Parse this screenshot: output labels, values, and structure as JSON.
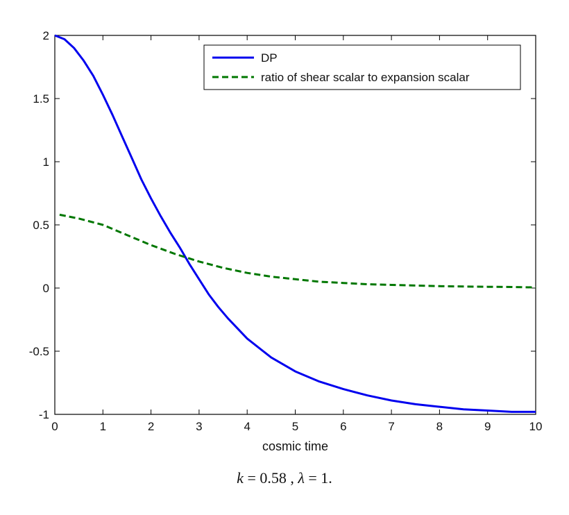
{
  "chart_data": {
    "type": "line",
    "xlabel": "cosmic time",
    "ylabel": "",
    "xlim": [
      0,
      10
    ],
    "ylim": [
      -1,
      2
    ],
    "xticks": [
      "0",
      "1",
      "2",
      "3",
      "4",
      "5",
      "6",
      "7",
      "8",
      "9",
      "10"
    ],
    "yticks": [
      "-1",
      "-0.5",
      "0",
      "0.5",
      "1",
      "1.5",
      "2"
    ],
    "legend_placement": "top-right",
    "series": [
      {
        "name": "DP",
        "color": "#0000ee",
        "style": "solid",
        "x": [
          0,
          0.2,
          0.4,
          0.6,
          0.8,
          1.0,
          1.2,
          1.4,
          1.6,
          1.8,
          2.0,
          2.2,
          2.4,
          2.6,
          2.8,
          3.0,
          3.2,
          3.4,
          3.6,
          3.8,
          4.0,
          4.5,
          5.0,
          5.5,
          6.0,
          6.5,
          7.0,
          7.5,
          8.0,
          8.5,
          9.0,
          9.5,
          10.0
        ],
        "y": [
          2.0,
          1.97,
          1.9,
          1.8,
          1.68,
          1.53,
          1.37,
          1.2,
          1.03,
          0.86,
          0.71,
          0.57,
          0.44,
          0.32,
          0.19,
          0.07,
          -0.05,
          -0.15,
          -0.24,
          -0.32,
          -0.4,
          -0.55,
          -0.66,
          -0.74,
          -0.8,
          -0.85,
          -0.89,
          -0.92,
          -0.94,
          -0.96,
          -0.97,
          -0.98,
          -0.98
        ]
      },
      {
        "name": "ratio of shear scalar to expansion scalar",
        "color": "#007700",
        "style": "dashed",
        "x": [
          0.1,
          0.5,
          1.0,
          1.5,
          2.0,
          2.5,
          3.0,
          3.5,
          4.0,
          4.5,
          5.0,
          5.5,
          6.0,
          6.5,
          7.0,
          7.5,
          8.0,
          8.5,
          9.0,
          9.5,
          10.0
        ],
        "y": [
          0.58,
          0.55,
          0.5,
          0.42,
          0.34,
          0.27,
          0.21,
          0.16,
          0.12,
          0.09,
          0.07,
          0.05,
          0.04,
          0.03,
          0.025,
          0.02,
          0.015,
          0.012,
          0.01,
          0.008,
          0.005
        ]
      }
    ]
  },
  "caption": {
    "k_symbol": "k",
    "k_value": " = 0.58 , ",
    "lambda_symbol": "λ",
    "lambda_value": " = 1."
  }
}
